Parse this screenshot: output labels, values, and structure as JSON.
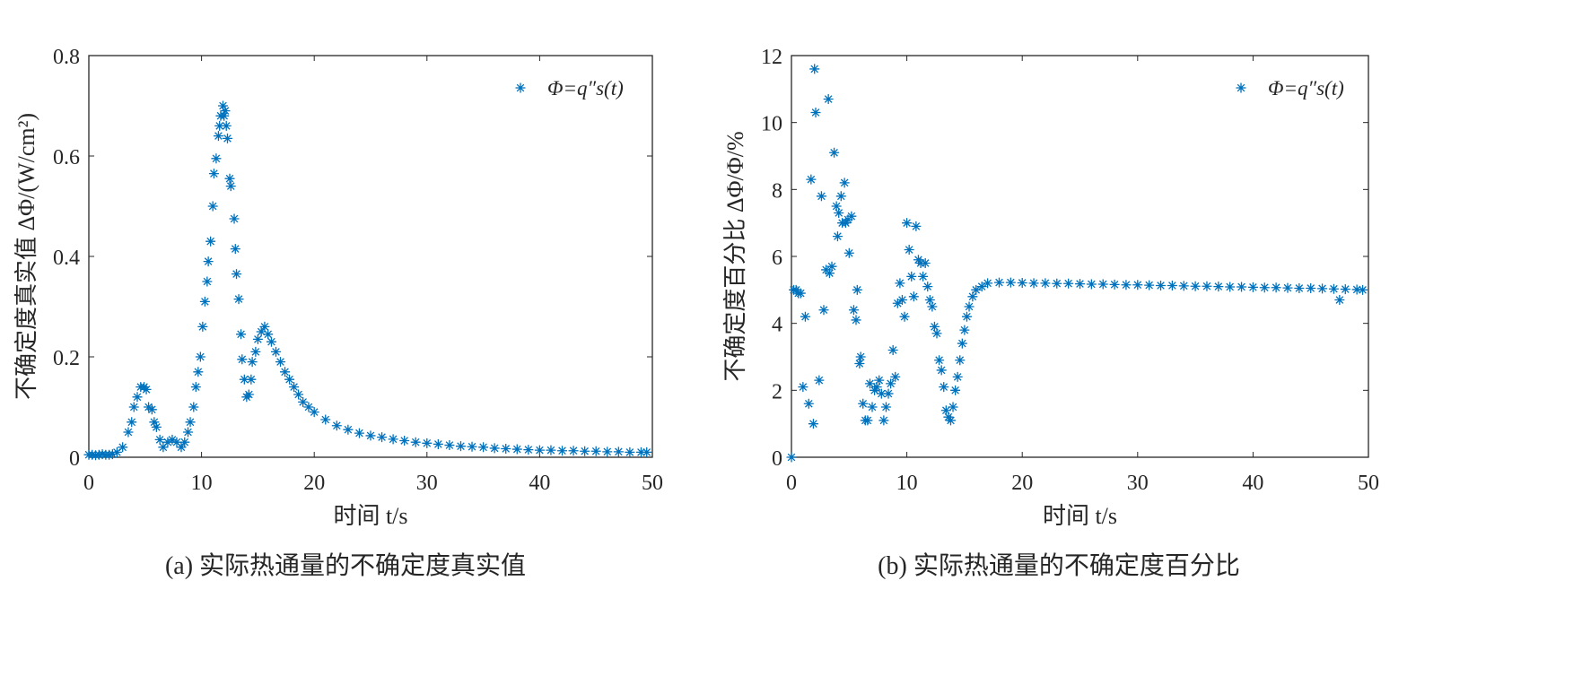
{
  "marker_color": "#0072BD",
  "chart_data": [
    {
      "type": "scatter",
      "caption": "(a) 实际热通量的不确定度真实值",
      "xlabel": "时间 t/s",
      "ylabel": "不确定度真实值 ΔΦ/(W/cm²)",
      "xlim": [
        0,
        50
      ],
      "ylim": [
        0,
        0.8
      ],
      "xticks": [
        0,
        10,
        20,
        30,
        40,
        50
      ],
      "yticks": [
        0,
        0.2,
        0.4,
        0.6,
        0.8
      ],
      "xtick_labels": [
        "0",
        "10",
        "20",
        "30",
        "40",
        "50"
      ],
      "ytick_labels": [
        "0",
        "0.2",
        "0.4",
        "0.6",
        "0.8"
      ],
      "legend": {
        "label": "Φ=q″s(t)",
        "position": "top-right"
      },
      "grid": false,
      "series": [
        {
          "name": "Φ=q″s(t)",
          "x": [
            0,
            0.3,
            0.6,
            0.9,
            1.2,
            1.5,
            1.8,
            2.1,
            2.5,
            3,
            3.5,
            3.8,
            4,
            4.3,
            4.6,
            4.9,
            5.1,
            5.3,
            5.6,
            5.8,
            6,
            6.3,
            6.6,
            7,
            7.4,
            7.8,
            8.2,
            8.5,
            8.8,
            9,
            9.3,
            9.5,
            9.7,
            9.9,
            10.1,
            10.3,
            10.5,
            10.6,
            10.8,
            11,
            11.1,
            11.3,
            11.5,
            11.6,
            11.7,
            11.9,
            12,
            12.1,
            12.2,
            12.3,
            12.5,
            12.6,
            12.9,
            13,
            13.1,
            13.3,
            13.5,
            13.6,
            13.8,
            14,
            14.2,
            14.4,
            14.5,
            14.8,
            15,
            15.3,
            15.6,
            15.9,
            16.2,
            16.6,
            17,
            17.4,
            17.8,
            18.2,
            18.6,
            19,
            19.5,
            20,
            21,
            22,
            23,
            24,
            25,
            26,
            27,
            28,
            29,
            30,
            31,
            32,
            33,
            34,
            35,
            36,
            37,
            38,
            39,
            40,
            41,
            42,
            43,
            44,
            45,
            46,
            47,
            48,
            49,
            49.5
          ],
          "y": [
            0.005,
            0.005,
            0.004,
            0.005,
            0.006,
            0.005,
            0.005,
            0.006,
            0.01,
            0.02,
            0.05,
            0.07,
            0.1,
            0.12,
            0.14,
            0.14,
            0.135,
            0.1,
            0.095,
            0.07,
            0.06,
            0.035,
            0.02,
            0.03,
            0.035,
            0.03,
            0.02,
            0.03,
            0.05,
            0.07,
            0.1,
            0.14,
            0.17,
            0.2,
            0.26,
            0.31,
            0.35,
            0.39,
            0.43,
            0.5,
            0.565,
            0.595,
            0.64,
            0.66,
            0.68,
            0.7,
            0.68,
            0.69,
            0.66,
            0.635,
            0.555,
            0.54,
            0.475,
            0.415,
            0.365,
            0.315,
            0.245,
            0.195,
            0.155,
            0.12,
            0.125,
            0.155,
            0.19,
            0.21,
            0.235,
            0.25,
            0.26,
            0.245,
            0.23,
            0.21,
            0.19,
            0.17,
            0.155,
            0.14,
            0.125,
            0.11,
            0.1,
            0.09,
            0.075,
            0.063,
            0.055,
            0.048,
            0.043,
            0.04,
            0.036,
            0.033,
            0.03,
            0.028,
            0.026,
            0.024,
            0.022,
            0.021,
            0.02,
            0.018,
            0.017,
            0.016,
            0.015,
            0.014,
            0.014,
            0.013,
            0.013,
            0.012,
            0.012,
            0.011,
            0.011,
            0.01,
            0.01,
            0.01
          ]
        }
      ]
    },
    {
      "type": "scatter",
      "caption": "(b) 实际热通量的不确定度百分比",
      "xlabel": "时间 t/s",
      "ylabel": "不确定度百分比 ΔΦ/Φ/%",
      "xlim": [
        0,
        50
      ],
      "ylim": [
        0,
        12
      ],
      "xticks": [
        0,
        10,
        20,
        30,
        40,
        50
      ],
      "yticks": [
        0,
        2,
        4,
        6,
        8,
        10,
        12
      ],
      "xtick_labels": [
        "0",
        "10",
        "20",
        "30",
        "40",
        "50"
      ],
      "ytick_labels": [
        "0",
        "2",
        "4",
        "6",
        "8",
        "10",
        "12"
      ],
      "legend": {
        "label": "Φ=q″s(t)",
        "position": "top-right"
      },
      "grid": false,
      "series": [
        {
          "name": "Φ=q″s(t)",
          "x": [
            0,
            0.2,
            0.4,
            0.6,
            0.8,
            1.0,
            1.2,
            1.5,
            1.7,
            1.9,
            2.0,
            2.1,
            2.4,
            2.6,
            2.8,
            3.0,
            3.2,
            3.3,
            3.5,
            3.7,
            3.9,
            4.0,
            4.1,
            4.3,
            4.4,
            4.6,
            4.7,
            4.9,
            5.0,
            5.2,
            5.4,
            5.6,
            5.7,
            5.9,
            6.0,
            6.2,
            6.4,
            6.6,
            6.8,
            7.0,
            7.2,
            7.4,
            7.6,
            7.8,
            8.0,
            8.2,
            8.4,
            8.6,
            8.8,
            9.0,
            9.2,
            9.4,
            9.6,
            9.8,
            10.0,
            10.2,
            10.4,
            10.6,
            10.8,
            11.0,
            11.2,
            11.4,
            11.6,
            11.8,
            12.0,
            12.2,
            12.4,
            12.6,
            12.8,
            13.0,
            13.2,
            13.4,
            13.6,
            13.8,
            14.0,
            14.2,
            14.4,
            14.6,
            14.8,
            15.0,
            15.2,
            15.4,
            15.7,
            16,
            16.5,
            17,
            18,
            19,
            20,
            21,
            22,
            23,
            24,
            25,
            26,
            27,
            28,
            29,
            30,
            31,
            32,
            33,
            34,
            35,
            36,
            37,
            38,
            39,
            40,
            41,
            42,
            43,
            44,
            45,
            46,
            47,
            47.5,
            48,
            49,
            49.5
          ],
          "y": [
            0,
            5.0,
            5.0,
            4.9,
            4.9,
            2.1,
            4.2,
            1.6,
            8.3,
            1.0,
            11.6,
            10.3,
            2.3,
            7.8,
            4.4,
            5.6,
            10.7,
            5.5,
            5.7,
            9.1,
            7.5,
            6.6,
            7.3,
            7.8,
            7.0,
            8.2,
            7.0,
            7.1,
            6.1,
            7.2,
            4.4,
            4.1,
            5.0,
            2.8,
            3.0,
            1.6,
            1.1,
            1.1,
            2.2,
            1.5,
            2.0,
            2.1,
            2.3,
            1.9,
            1.1,
            1.5,
            1.9,
            2.2,
            3.2,
            2.4,
            4.6,
            5.2,
            4.7,
            4.2,
            7.0,
            6.2,
            5.4,
            4.8,
            6.9,
            5.9,
            5.8,
            5.4,
            5.8,
            5.1,
            4.7,
            4.5,
            3.9,
            3.7,
            2.9,
            2.6,
            2.1,
            1.4,
            1.2,
            1.1,
            1.5,
            2.0,
            2.4,
            2.9,
            3.4,
            3.8,
            4.2,
            4.5,
            4.8,
            5.0,
            5.1,
            5.2,
            5.22,
            5.22,
            5.21,
            5.2,
            5.2,
            5.19,
            5.19,
            5.18,
            5.17,
            5.17,
            5.16,
            5.15,
            5.15,
            5.14,
            5.13,
            5.13,
            5.12,
            5.11,
            5.11,
            5.1,
            5.09,
            5.09,
            5.08,
            5.07,
            5.07,
            5.06,
            5.05,
            5.05,
            5.04,
            5.03,
            4.7,
            5.02,
            5.01,
            5.0
          ]
        }
      ]
    }
  ]
}
